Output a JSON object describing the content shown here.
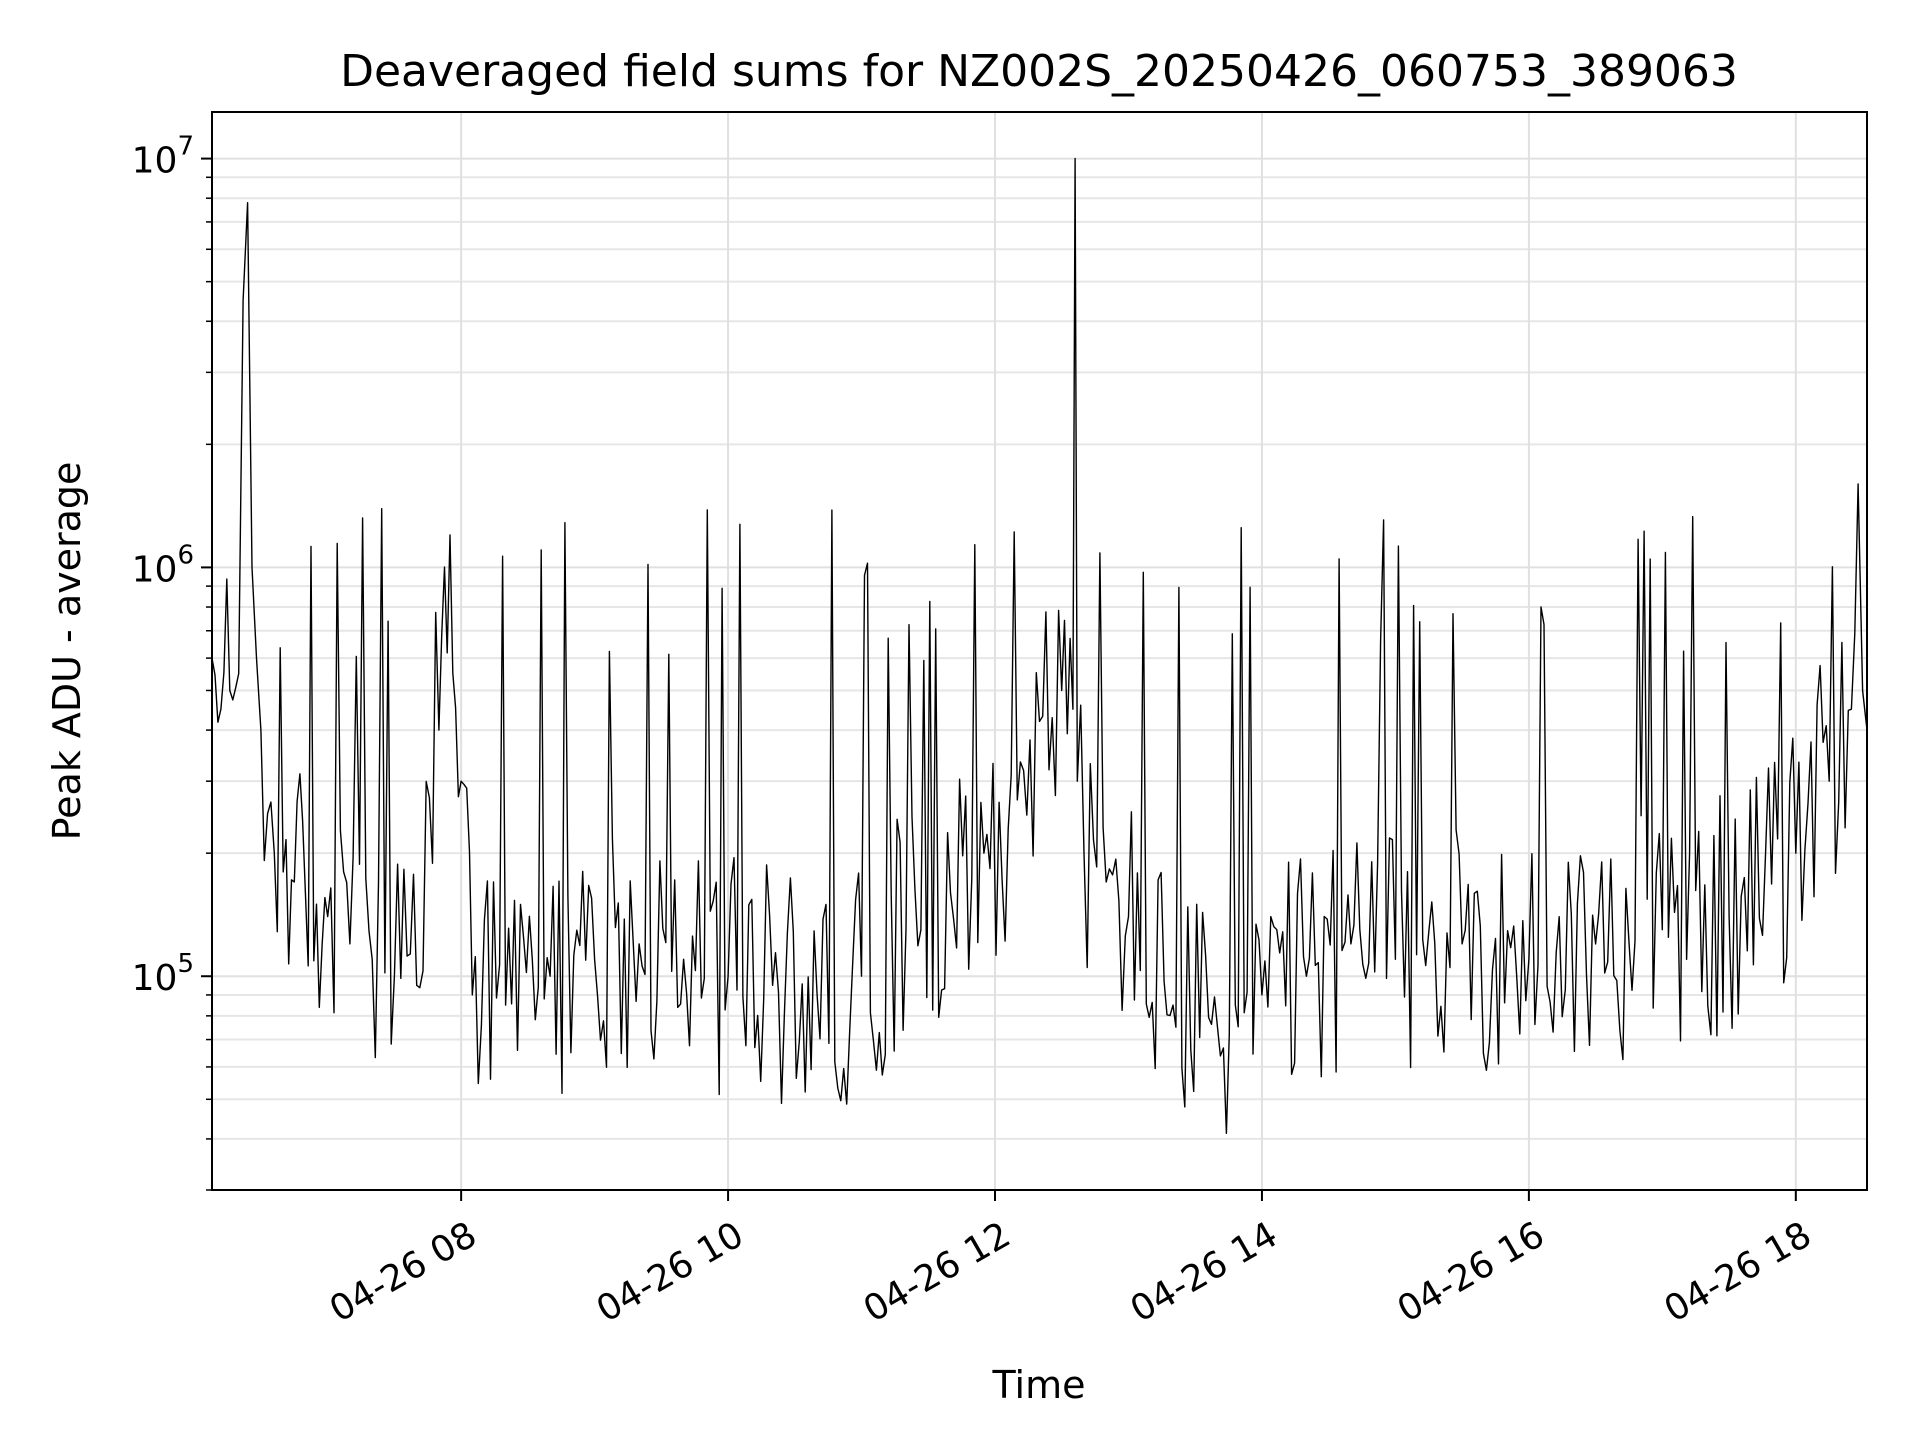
{
  "chart_data": {
    "type": "line",
    "title": "Deaveraged field sums for NZ002S_20250426_060753_389063",
    "xlabel": "Time",
    "ylabel": "Peak ADU - average",
    "yscale": "log",
    "ylim": [
      30000,
      13000000
    ],
    "xlim": [
      "2025-04-26 06:08",
      "2025-04-26 18:32"
    ],
    "grid": true,
    "x_ticks": [
      {
        "value": "2025-04-26 08:00",
        "label": "04-26 08"
      },
      {
        "value": "2025-04-26 10:00",
        "label": "04-26 10"
      },
      {
        "value": "2025-04-26 12:00",
        "label": "04-26 12"
      },
      {
        "value": "2025-04-26 14:00",
        "label": "04-26 14"
      },
      {
        "value": "2025-04-26 16:00",
        "label": "04-26 16"
      },
      {
        "value": "2025-04-26 18:00",
        "label": "04-26 18"
      }
    ],
    "y_ticks": [
      {
        "value": 100000,
        "base": "10",
        "exp": "5"
      },
      {
        "value": 1000000,
        "base": "10",
        "exp": "6"
      },
      {
        "value": 10000000,
        "base": "10",
        "exp": "7"
      }
    ],
    "series": [
      {
        "color": "#000000",
        "x": [
          "2025-04-26 06:08",
          "2025-04-26 06:12",
          "2025-04-26 06:16",
          "2025-04-26 06:20",
          "2025-04-26 06:22",
          "2025-04-26 06:24",
          "2025-04-26 06:26",
          "2025-04-26 06:28",
          "2025-04-26 06:30",
          "2025-04-26 06:33",
          "2025-04-26 06:36",
          "2025-04-26 06:40",
          "2025-04-26 06:45",
          "2025-04-26 06:50",
          "2025-04-26 06:55",
          "2025-04-26 07:00",
          "2025-04-26 07:10",
          "2025-04-26 07:20",
          "2025-04-26 07:30",
          "2025-04-26 07:40",
          "2025-04-26 07:50",
          "2025-04-26 07:55",
          "2025-04-26 08:00",
          "2025-04-26 08:05",
          "2025-04-26 08:20",
          "2025-04-26 08:40",
          "2025-04-26 09:00",
          "2025-04-26 09:20",
          "2025-04-26 09:40",
          "2025-04-26 10:00",
          "2025-04-26 10:20",
          "2025-04-26 10:40",
          "2025-04-26 11:00",
          "2025-04-26 11:20",
          "2025-04-26 11:40",
          "2025-04-26 11:55",
          "2025-04-26 12:10",
          "2025-04-26 12:20",
          "2025-04-26 12:30",
          "2025-04-26 12:35",
          "2025-04-26 12:36",
          "2025-04-26 12:37",
          "2025-04-26 12:40",
          "2025-04-26 12:50",
          "2025-04-26 13:00",
          "2025-04-26 13:20",
          "2025-04-26 13:40",
          "2025-04-26 14:00",
          "2025-04-26 14:20",
          "2025-04-26 14:40",
          "2025-04-26 15:00",
          "2025-04-26 15:30",
          "2025-04-26 16:00",
          "2025-04-26 16:30",
          "2025-04-26 17:00",
          "2025-04-26 17:30",
          "2025-04-26 18:00",
          "2025-04-26 18:15",
          "2025-04-26 18:25",
          "2025-04-26 18:28",
          "2025-04-26 18:30",
          "2025-04-26 18:32"
        ],
        "y": [
          600000,
          450000,
          500000,
          550000,
          4500000,
          7800000,
          1000000,
          600000,
          400000,
          250000,
          200000,
          180000,
          170000,
          160000,
          150000,
          140000,
          120000,
          110000,
          100000,
          95000,
          400000,
          1200000,
          300000,
          90000,
          85000,
          100000,
          110000,
          120000,
          110000,
          100000,
          95000,
          90000,
          100000,
          130000,
          160000,
          200000,
          270000,
          420000,
          500000,
          450000,
          10000000,
          300000,
          200000,
          170000,
          140000,
          85000,
          75000,
          90000,
          100000,
          120000,
          110000,
          120000,
          110000,
          120000,
          130000,
          140000,
          200000,
          300000,
          450000,
          1600000,
          500000,
          400000
        ]
      }
    ]
  }
}
